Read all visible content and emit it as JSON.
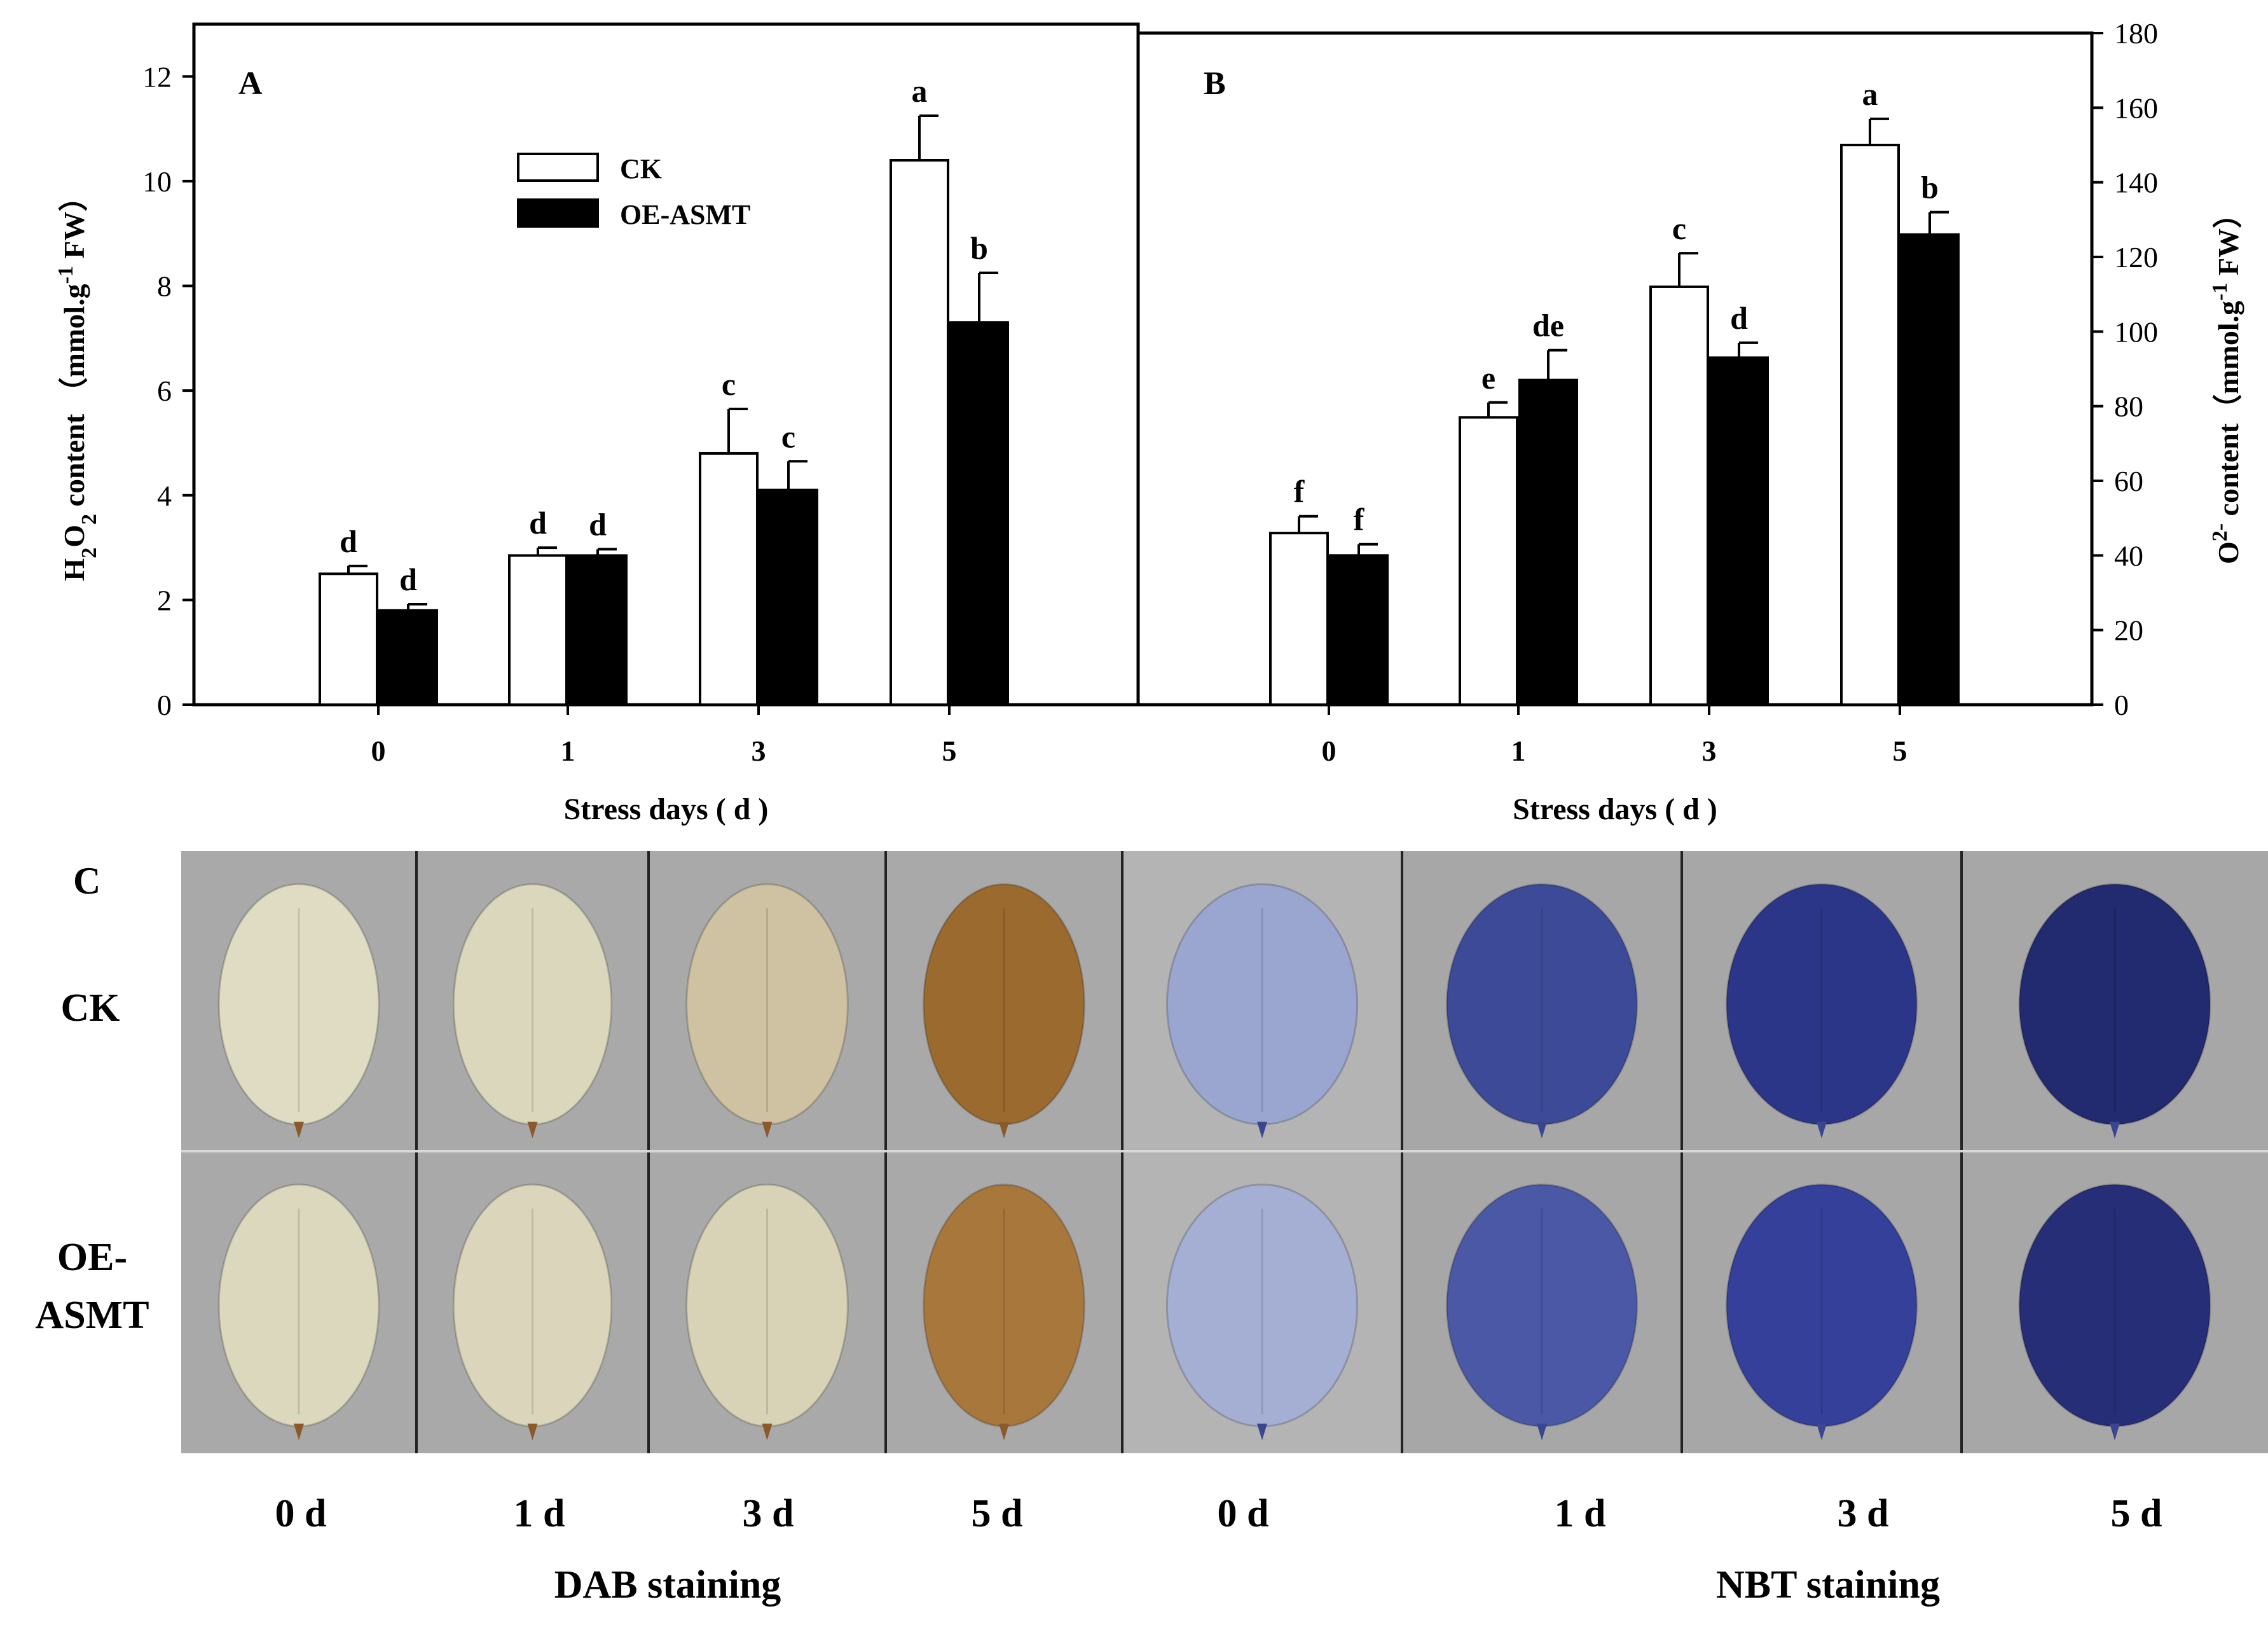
{
  "panel_labels": {
    "a": "A",
    "b": "B",
    "c": "C"
  },
  "legend": [
    {
      "name": "CK",
      "fill": "#ffffff"
    },
    {
      "name": "OE-ASMT",
      "fill": "#000000"
    }
  ],
  "colors": {
    "ck": "#ffffff",
    "oe": "#000000",
    "axis": "#000000"
  },
  "chart_data": [
    {
      "type": "bar",
      "panel": "A",
      "categories": [
        "0",
        "1",
        "3",
        "5"
      ],
      "series": [
        {
          "name": "CK",
          "values": [
            2.5,
            2.85,
            4.8,
            10.4
          ],
          "errors": [
            0.15,
            0.15,
            0.85,
            0.85
          ],
          "letters": [
            "d",
            "d",
            "c",
            "a"
          ]
        },
        {
          "name": "OE-ASMT",
          "values": [
            1.8,
            2.85,
            4.1,
            7.3
          ],
          "errors": [
            0.12,
            0.12,
            0.55,
            0.95
          ],
          "letters": [
            "d",
            "d",
            "c",
            "b"
          ]
        }
      ],
      "xlabel": "Stress days ( d )",
      "ylabel_parts": {
        "h": "H",
        "sub2a": "2",
        "o": "O",
        "sub2b": "2",
        "rest": " content （mmol.g",
        "sup": "-1",
        "tail": " FW）"
      },
      "ylim": [
        0,
        13
      ],
      "yticks": [
        0,
        2,
        4,
        6,
        8,
        10,
        12
      ]
    },
    {
      "type": "bar",
      "panel": "B",
      "categories": [
        "0",
        "1",
        "3",
        "5"
      ],
      "series": [
        {
          "name": "CK",
          "values": [
            46,
            77,
            112,
            150
          ],
          "errors": [
            4.5,
            4,
            9,
            7
          ],
          "letters": [
            "f",
            "e",
            "c",
            "a"
          ]
        },
        {
          "name": "OE-ASMT",
          "values": [
            40,
            87,
            93,
            126
          ],
          "errors": [
            3,
            8,
            4,
            6
          ],
          "letters": [
            "f",
            "de",
            "d",
            "b"
          ]
        }
      ],
      "xlabel": "Stress days ( d )",
      "ylabel_parts": {
        "o": "O",
        "sup2": "2-",
        "rest": " content（mmol.g",
        "sup": "-1",
        "tail": " FW）"
      },
      "ylim": [
        0,
        180
      ],
      "yticks": [
        0,
        20,
        40,
        60,
        80,
        100,
        120,
        140,
        160,
        180
      ]
    }
  ],
  "staining": {
    "row_labels": [
      "CK",
      "OE-",
      "ASMT"
    ],
    "col_days": [
      "0 d",
      "1 d",
      "3 d",
      "5 d",
      "0 d",
      "1 d",
      "3 d",
      "5 d"
    ],
    "group_labels": [
      "DAB staining",
      "NBT staining"
    ],
    "dab_colors": [
      "#e0dcc4",
      "#dbd7bd",
      "#cfc2a2",
      "#9a6a2e"
    ],
    "nbt_colors": [
      "#9aa6d0",
      "#3c4a98",
      "#2c3688",
      "#222a70"
    ],
    "dab_colors_oe": [
      "#dcd8be",
      "#dad5bb",
      "#d8d2b6",
      "#a8773c"
    ],
    "nbt_colors_oe": [
      "#a5afd4",
      "#4a58a6",
      "#34409a",
      "#262e78"
    ]
  }
}
